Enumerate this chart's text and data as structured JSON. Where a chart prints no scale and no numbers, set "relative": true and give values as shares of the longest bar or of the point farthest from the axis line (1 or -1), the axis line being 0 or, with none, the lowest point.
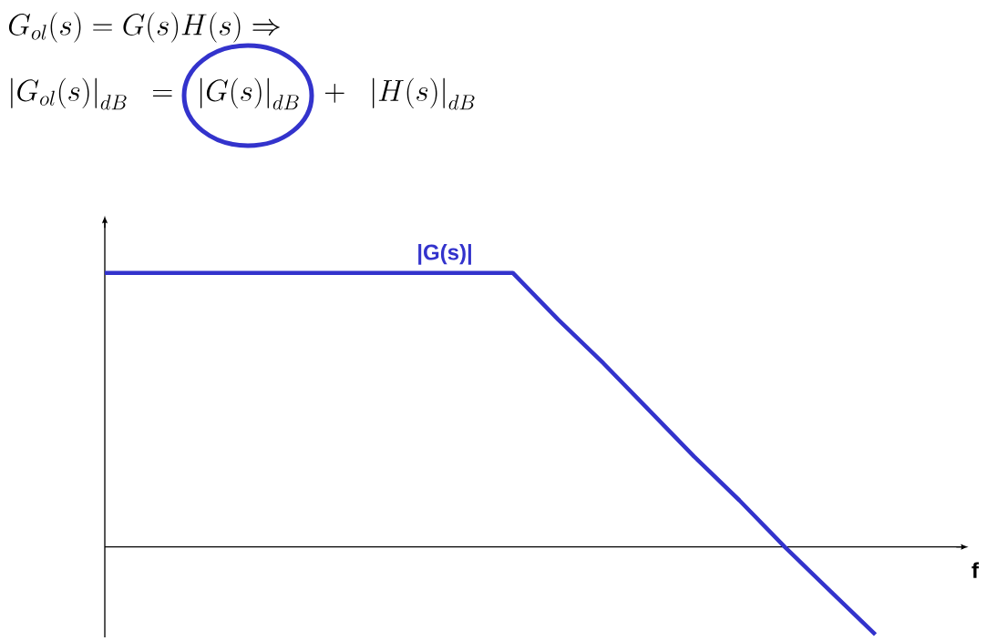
{
  "chart_data": {
    "type": "line",
    "title": "G_{ol}(s)=G(s)H(s)\\Rightarrow",
    "subtitle": "\\left|G_{ol}(s)\\right|_{dB}=\\left|G(s)\\right|_{dB}+\\left|H(s)\\right|_{dB}",
    "xlabel": "f",
    "relative": true,
    "categories": [
      null,
      null,
      null,
      null,
      null,
      null,
      null,
      null,
      null,
      null,
      null,
      null,
      null,
      null,
      null,
      null,
      null,
      null
    ],
    "series": [
      {
        "name": "|G(s)|",
        "color": "#3333cc",
        "values": [
          1,
          1,
          1,
          1,
          1,
          1,
          1,
          1,
          1,
          1,
          0.83,
          0.67,
          0.5,
          0.33,
          0.17,
          0,
          -0.16,
          -0.32
        ]
      }
    ]
  }
}
